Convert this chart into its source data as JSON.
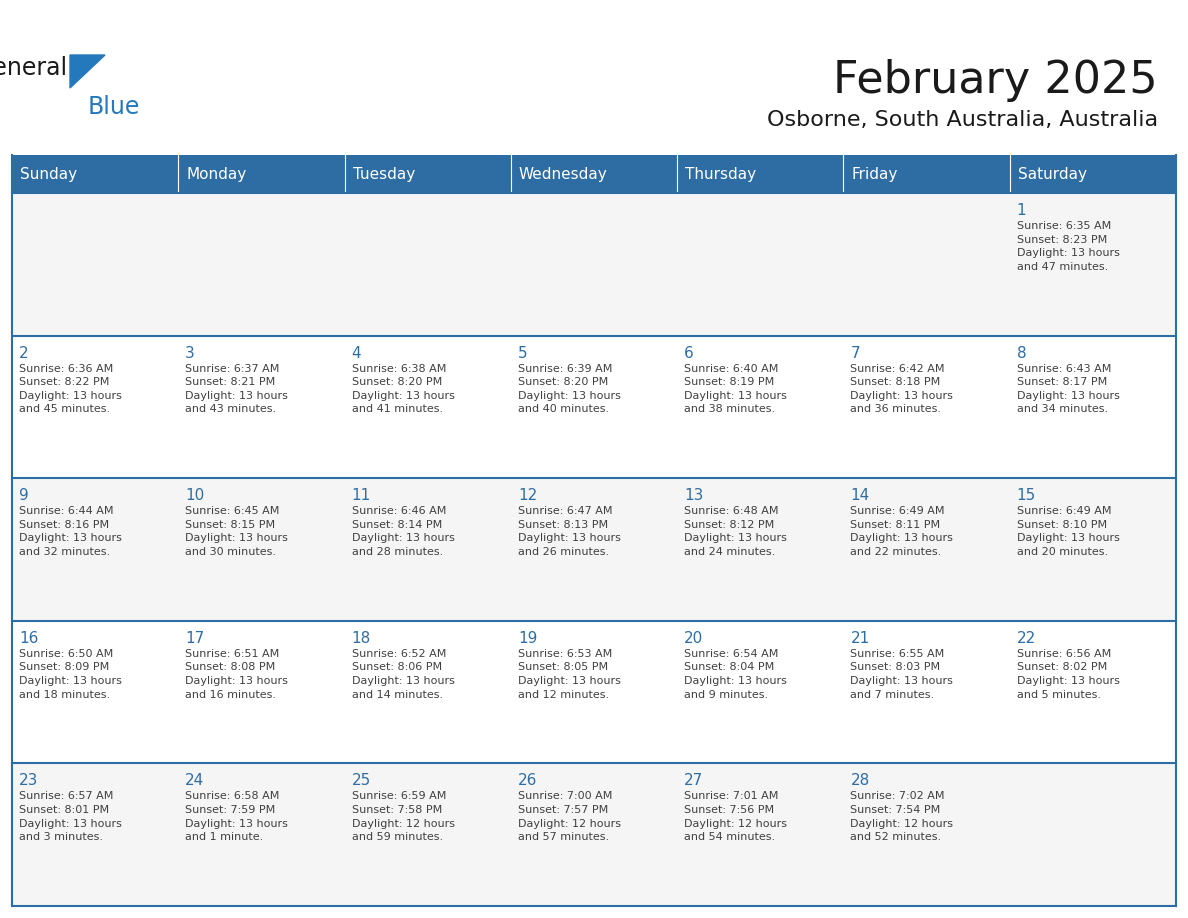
{
  "title": "February 2025",
  "subtitle": "Osborne, South Australia, Australia",
  "days_of_week": [
    "Sunday",
    "Monday",
    "Tuesday",
    "Wednesday",
    "Thursday",
    "Friday",
    "Saturday"
  ],
  "header_bg": "#2E6DA4",
  "header_text": "#FFFFFF",
  "cell_bg": "#FFFFFF",
  "cell_bg_alt": "#F5F5F5",
  "day_num_color": "#2E6DA4",
  "info_color": "#404040",
  "border_color": "#2E6DA4",
  "row_line_color": "#2E6DA4",
  "weeks": [
    [
      {
        "day": null,
        "info": ""
      },
      {
        "day": null,
        "info": ""
      },
      {
        "day": null,
        "info": ""
      },
      {
        "day": null,
        "info": ""
      },
      {
        "day": null,
        "info": ""
      },
      {
        "day": null,
        "info": ""
      },
      {
        "day": 1,
        "info": "Sunrise: 6:35 AM\nSunset: 8:23 PM\nDaylight: 13 hours\nand 47 minutes."
      }
    ],
    [
      {
        "day": 2,
        "info": "Sunrise: 6:36 AM\nSunset: 8:22 PM\nDaylight: 13 hours\nand 45 minutes."
      },
      {
        "day": 3,
        "info": "Sunrise: 6:37 AM\nSunset: 8:21 PM\nDaylight: 13 hours\nand 43 minutes."
      },
      {
        "day": 4,
        "info": "Sunrise: 6:38 AM\nSunset: 8:20 PM\nDaylight: 13 hours\nand 41 minutes."
      },
      {
        "day": 5,
        "info": "Sunrise: 6:39 AM\nSunset: 8:20 PM\nDaylight: 13 hours\nand 40 minutes."
      },
      {
        "day": 6,
        "info": "Sunrise: 6:40 AM\nSunset: 8:19 PM\nDaylight: 13 hours\nand 38 minutes."
      },
      {
        "day": 7,
        "info": "Sunrise: 6:42 AM\nSunset: 8:18 PM\nDaylight: 13 hours\nand 36 minutes."
      },
      {
        "day": 8,
        "info": "Sunrise: 6:43 AM\nSunset: 8:17 PM\nDaylight: 13 hours\nand 34 minutes."
      }
    ],
    [
      {
        "day": 9,
        "info": "Sunrise: 6:44 AM\nSunset: 8:16 PM\nDaylight: 13 hours\nand 32 minutes."
      },
      {
        "day": 10,
        "info": "Sunrise: 6:45 AM\nSunset: 8:15 PM\nDaylight: 13 hours\nand 30 minutes."
      },
      {
        "day": 11,
        "info": "Sunrise: 6:46 AM\nSunset: 8:14 PM\nDaylight: 13 hours\nand 28 minutes."
      },
      {
        "day": 12,
        "info": "Sunrise: 6:47 AM\nSunset: 8:13 PM\nDaylight: 13 hours\nand 26 minutes."
      },
      {
        "day": 13,
        "info": "Sunrise: 6:48 AM\nSunset: 8:12 PM\nDaylight: 13 hours\nand 24 minutes."
      },
      {
        "day": 14,
        "info": "Sunrise: 6:49 AM\nSunset: 8:11 PM\nDaylight: 13 hours\nand 22 minutes."
      },
      {
        "day": 15,
        "info": "Sunrise: 6:49 AM\nSunset: 8:10 PM\nDaylight: 13 hours\nand 20 minutes."
      }
    ],
    [
      {
        "day": 16,
        "info": "Sunrise: 6:50 AM\nSunset: 8:09 PM\nDaylight: 13 hours\nand 18 minutes."
      },
      {
        "day": 17,
        "info": "Sunrise: 6:51 AM\nSunset: 8:08 PM\nDaylight: 13 hours\nand 16 minutes."
      },
      {
        "day": 18,
        "info": "Sunrise: 6:52 AM\nSunset: 8:06 PM\nDaylight: 13 hours\nand 14 minutes."
      },
      {
        "day": 19,
        "info": "Sunrise: 6:53 AM\nSunset: 8:05 PM\nDaylight: 13 hours\nand 12 minutes."
      },
      {
        "day": 20,
        "info": "Sunrise: 6:54 AM\nSunset: 8:04 PM\nDaylight: 13 hours\nand 9 minutes."
      },
      {
        "day": 21,
        "info": "Sunrise: 6:55 AM\nSunset: 8:03 PM\nDaylight: 13 hours\nand 7 minutes."
      },
      {
        "day": 22,
        "info": "Sunrise: 6:56 AM\nSunset: 8:02 PM\nDaylight: 13 hours\nand 5 minutes."
      }
    ],
    [
      {
        "day": 23,
        "info": "Sunrise: 6:57 AM\nSunset: 8:01 PM\nDaylight: 13 hours\nand 3 minutes."
      },
      {
        "day": 24,
        "info": "Sunrise: 6:58 AM\nSunset: 7:59 PM\nDaylight: 13 hours\nand 1 minute."
      },
      {
        "day": 25,
        "info": "Sunrise: 6:59 AM\nSunset: 7:58 PM\nDaylight: 12 hours\nand 59 minutes."
      },
      {
        "day": 26,
        "info": "Sunrise: 7:00 AM\nSunset: 7:57 PM\nDaylight: 12 hours\nand 57 minutes."
      },
      {
        "day": 27,
        "info": "Sunrise: 7:01 AM\nSunset: 7:56 PM\nDaylight: 12 hours\nand 54 minutes."
      },
      {
        "day": 28,
        "info": "Sunrise: 7:02 AM\nSunset: 7:54 PM\nDaylight: 12 hours\nand 52 minutes."
      },
      {
        "day": null,
        "info": ""
      }
    ]
  ],
  "logo_text1": "General",
  "logo_text2": "Blue",
  "logo_color1": "#1a1a1a",
  "logo_color2": "#2479BD",
  "title_fontsize": 32,
  "subtitle_fontsize": 16,
  "header_fontsize": 11,
  "day_num_fontsize": 11,
  "info_fontsize": 8
}
